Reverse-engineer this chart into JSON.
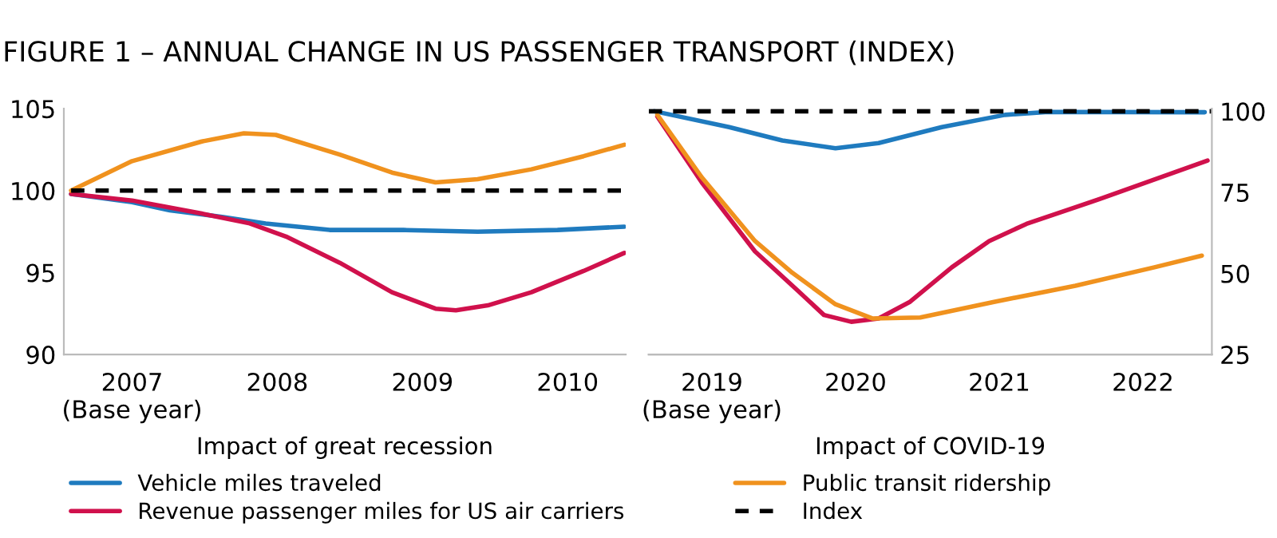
{
  "chart_data": [
    {
      "type": "line",
      "title": "FIGURE 1 – ANNUAL CHANGE IN US PASSENGER TRANSPORT (INDEX)",
      "xlabel": "Impact of great recession",
      "xlim": [
        2006.53,
        2010.4
      ],
      "xticks": [
        {
          "value": 2007,
          "label": "2007\n(Base year)"
        },
        2008,
        2009,
        2010
      ],
      "ylim": [
        90,
        105
      ],
      "yticks": [
        90,
        95,
        100,
        105
      ],
      "grid": false,
      "legend": "bottom",
      "tick_labels": [
        "x",
        "y"
      ],
      "series": [
        {
          "name": "Vehicle miles traveled",
          "color": "#1f7bbf",
          "x": [
            2006.58,
            2007,
            2007.26,
            2007.62,
            2007.92,
            2008.36,
            2008.87,
            2009.38,
            2009.93,
            2010.39
          ],
          "values": [
            99.8,
            99.3,
            98.8,
            98.4,
            98.0,
            97.6,
            97.6,
            97.5,
            97.6,
            97.8
          ]
        },
        {
          "name": "Revenue passenger miles for US air carriers",
          "color": "#d0114c",
          "x": [
            2006.58,
            2007,
            2007.48,
            2007.81,
            2008.06,
            2008.43,
            2008.79,
            2009.09,
            2009.23,
            2009.45,
            2009.75,
            2010.11,
            2010.39
          ],
          "values": [
            99.8,
            99.4,
            98.6,
            98.0,
            97.2,
            95.6,
            93.8,
            92.8,
            92.7,
            93.0,
            93.8,
            95.1,
            96.2
          ]
        },
        {
          "name": "Public transit ridership",
          "color": "#f0921e",
          "x": [
            2006.58,
            2007,
            2007.48,
            2007.77,
            2007.99,
            2008.43,
            2008.79,
            2009.09,
            2009.38,
            2009.75,
            2010.11,
            2010.39
          ],
          "values": [
            100.0,
            101.8,
            103.0,
            103.5,
            103.4,
            102.2,
            101.1,
            100.5,
            100.7,
            101.3,
            102.1,
            102.8
          ]
        },
        {
          "name": "Index",
          "color": "#000000",
          "line_style": "dashed",
          "x": [
            2006.58,
            2010.4
          ],
          "values": [
            100,
            100
          ]
        }
      ]
    },
    {
      "type": "line",
      "xlabel": "Impact of COVID-19",
      "xlim": [
        2018.56,
        2022.48
      ],
      "xticks": [
        {
          "value": 2019,
          "label": "2019\n(Base year)"
        },
        2020,
        2021,
        2022
      ],
      "y2lim": [
        25,
        100.8
      ],
      "y2ticks": [
        25,
        50,
        75,
        100
      ],
      "grid": false,
      "legend": false,
      "tick_labels": [
        "x",
        "y2"
      ],
      "series": [
        {
          "color": "#1f7bbf",
          "axis": "y2",
          "x": [
            2018.6,
            2019.12,
            2019.49,
            2019.86,
            2020.16,
            2020.6,
            2021.04,
            2021.34,
            2022.43
          ],
          "values": [
            100,
            95.1,
            91.0,
            88.6,
            90.2,
            95.1,
            98.9,
            99.8,
            99.7
          ]
        },
        {
          "color": "#d0114c",
          "axis": "y2",
          "x": [
            2018.62,
            2018.93,
            2019.3,
            2019.6,
            2019.78,
            2019.97,
            2020.16,
            2020.38,
            2020.67,
            2020.93,
            2021.19,
            2021.71,
            2022.45
          ],
          "values": [
            98.4,
            78.0,
            56.8,
            44.6,
            37.2,
            35.1,
            36.1,
            41.3,
            51.9,
            60.0,
            65.3,
            73.1,
            84.8
          ]
        },
        {
          "color": "#f0921e",
          "axis": "y2",
          "x": [
            2018.62,
            2018.93,
            2019.3,
            2019.56,
            2019.86,
            2020.12,
            2020.45,
            2020.97,
            2021.53,
            2022.08,
            2022.41
          ],
          "values": [
            98.9,
            79.6,
            60.0,
            50.2,
            40.5,
            36.1,
            36.4,
            41.3,
            46.2,
            51.9,
            55.5
          ]
        },
        {
          "color": "#000000",
          "axis": "y2",
          "line_style": "dashed",
          "x": [
            2018.56,
            2022.48
          ],
          "values": [
            100,
            100
          ]
        }
      ]
    }
  ]
}
